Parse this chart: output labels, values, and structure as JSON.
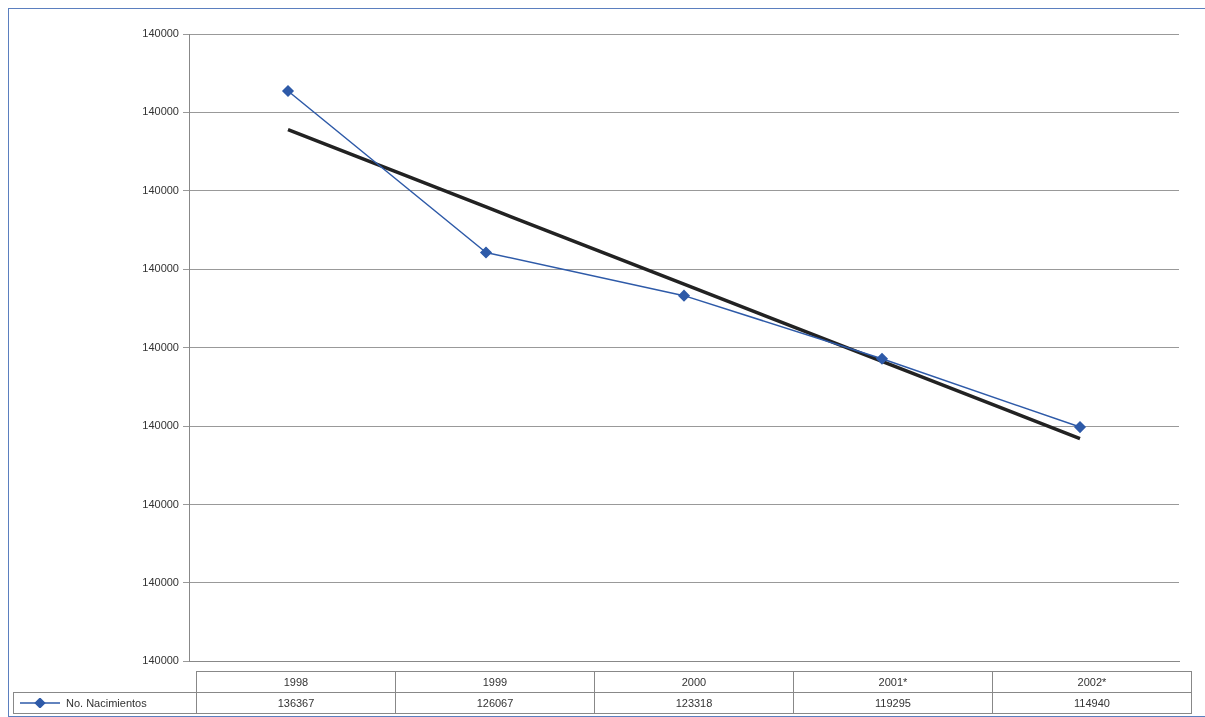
{
  "chart_data": {
    "type": "line",
    "categories": [
      "1998",
      "1999",
      "2000",
      "2001*",
      "2002*"
    ],
    "series": [
      {
        "name": "No. Nacimientos",
        "color": "#2e5aa8",
        "values": [
          136367,
          126067,
          123318,
          119295,
          114940
        ],
        "value_labels": [
          "136367",
          "126067",
          "123318",
          "119295",
          "114940"
        ],
        "marker": "diamond"
      },
      {
        "type": "line",
        "color": "#222222",
        "values": [
          133900,
          128975,
          124050,
          119125,
          114200
        ],
        "marker": "none"
      }
    ],
    "ylim": [
      100000,
      140000
    ],
    "yticks": [
      {
        "value": 100000,
        "label": null
      },
      {
        "value": 105000,
        "label": null
      },
      {
        "value": 110000,
        "label": null
      },
      {
        "value": 115000,
        "label": null
      },
      {
        "value": 120000,
        "label": null
      },
      {
        "value": 125000,
        "label": null
      },
      {
        "value": 130000,
        "label": null
      },
      {
        "value": 135000,
        "label": null
      },
      {
        "value": 140000,
        "label": null
      }
    ],
    "annotations": [
      "140000",
      "140000",
      "140000",
      "140000",
      "140000",
      "140000",
      "140000",
      "140000",
      "140000"
    ],
    "grid": "y",
    "legend": "bottom"
  }
}
